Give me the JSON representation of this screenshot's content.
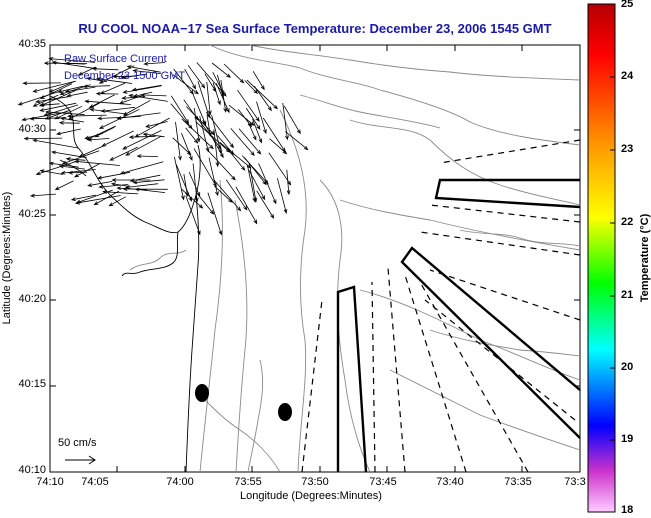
{
  "title": "RU COOL  NOAA−17  Sea Surface Temperature:  December 23, 2006 1545 GMT",
  "legend": {
    "line1": "Raw Surface Current",
    "line2": "December 23 1500 GMT"
  },
  "y_axis": {
    "title": "Latitude (Degrees:Minutes)",
    "ticks": [
      "40:35",
      "40:30",
      "40:25",
      "40:20",
      "40:15",
      "40:10"
    ]
  },
  "x_axis": {
    "title": "Longitude (Degrees:Minutes)",
    "ticks": [
      "74:10",
      "74:05",
      "74:00",
      "73:55",
      "73:50",
      "73:45",
      "73:40",
      "73:35",
      "73:3"
    ]
  },
  "colorbar": {
    "title": "Temperature (°C)",
    "ticks": [
      "25",
      "24",
      "23",
      "22",
      "21",
      "20",
      "19",
      "18"
    ],
    "colors": [
      "#c80000",
      "#ff0000",
      "#ff9900",
      "#ffff00",
      "#00ff00",
      "#00ffff",
      "#0000ff",
      "#cc33cc",
      "#ffbbff"
    ]
  },
  "scale_label": "50 cm/s",
  "colors": {
    "title_text": "#1a1aa6",
    "contour": "#8a8a8a",
    "coastline": "#000000"
  }
}
